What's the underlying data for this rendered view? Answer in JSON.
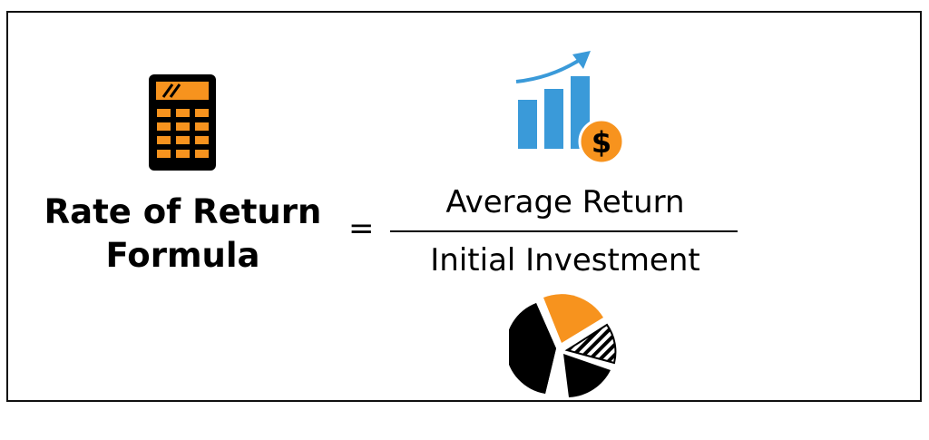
{
  "formula": {
    "title_line1": "Rate of Return",
    "title_line2": "Formula",
    "equals": "=",
    "numerator": "Average Return",
    "denominator": "Initial Investment"
  },
  "icons": {
    "calculator": "calculator-icon",
    "growth_chart": "bar-chart-growth-dollar-icon",
    "pie_chart": "pie-chart-icon",
    "dollar_sign": "$"
  },
  "colors": {
    "orange": "#F7931E",
    "blue": "#3A9AD9",
    "black": "#000000"
  }
}
